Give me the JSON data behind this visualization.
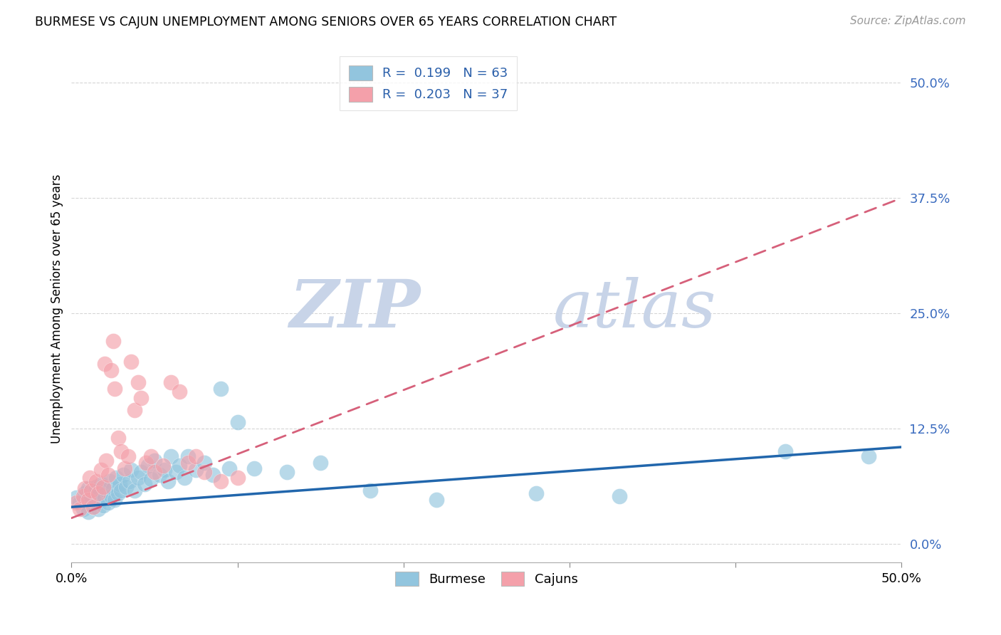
{
  "title": "BURMESE VS CAJUN UNEMPLOYMENT AMONG SENIORS OVER 65 YEARS CORRELATION CHART",
  "source": "Source: ZipAtlas.com",
  "ylabel": "Unemployment Among Seniors over 65 years",
  "ytick_labels": [
    "0.0%",
    "12.5%",
    "25.0%",
    "37.5%",
    "50.0%"
  ],
  "ytick_values": [
    0.0,
    0.125,
    0.25,
    0.375,
    0.5
  ],
  "xlim": [
    0.0,
    0.5
  ],
  "ylim": [
    -0.02,
    0.53
  ],
  "burmese_R": 0.199,
  "burmese_N": 63,
  "cajun_R": 0.203,
  "cajun_N": 37,
  "burmese_color": "#92c5de",
  "cajun_color": "#f4a0aa",
  "burmese_line_color": "#2166ac",
  "cajun_line_color": "#d6607a",
  "grid_color": "#cccccc",
  "watermark_zip": "ZIP",
  "watermark_atlas": "atlas",
  "watermark_color": "#c8d4e8",
  "legend_label_1": "Burmese",
  "legend_label_2": "Cajuns",
  "burmese_line_x": [
    0.0,
    0.5
  ],
  "burmese_line_y": [
    0.04,
    0.105
  ],
  "cajun_line_x": [
    0.0,
    0.5
  ],
  "cajun_line_y": [
    0.028,
    0.375
  ],
  "burmese_x": [
    0.003,
    0.005,
    0.007,
    0.008,
    0.009,
    0.01,
    0.01,
    0.011,
    0.012,
    0.013,
    0.014,
    0.015,
    0.015,
    0.016,
    0.017,
    0.018,
    0.018,
    0.019,
    0.02,
    0.021,
    0.022,
    0.023,
    0.024,
    0.025,
    0.026,
    0.027,
    0.028,
    0.029,
    0.03,
    0.031,
    0.033,
    0.035,
    0.036,
    0.038,
    0.04,
    0.042,
    0.044,
    0.046,
    0.048,
    0.05,
    0.053,
    0.056,
    0.058,
    0.06,
    0.063,
    0.065,
    0.068,
    0.07,
    0.075,
    0.08,
    0.085,
    0.09,
    0.095,
    0.1,
    0.11,
    0.13,
    0.15,
    0.18,
    0.22,
    0.28,
    0.33,
    0.43,
    0.48
  ],
  "burmese_y": [
    0.05,
    0.045,
    0.038,
    0.055,
    0.042,
    0.06,
    0.035,
    0.048,
    0.052,
    0.04,
    0.058,
    0.044,
    0.062,
    0.038,
    0.055,
    0.048,
    0.065,
    0.042,
    0.05,
    0.058,
    0.045,
    0.068,
    0.052,
    0.06,
    0.048,
    0.072,
    0.055,
    0.065,
    0.058,
    0.075,
    0.062,
    0.068,
    0.08,
    0.058,
    0.072,
    0.078,
    0.065,
    0.085,
    0.07,
    0.09,
    0.075,
    0.08,
    0.068,
    0.095,
    0.078,
    0.085,
    0.072,
    0.095,
    0.08,
    0.088,
    0.075,
    0.168,
    0.082,
    0.132,
    0.082,
    0.078,
    0.088,
    0.058,
    0.048,
    0.055,
    0.052,
    0.1,
    0.095
  ],
  "cajun_x": [
    0.003,
    0.005,
    0.007,
    0.008,
    0.01,
    0.011,
    0.012,
    0.013,
    0.015,
    0.016,
    0.018,
    0.019,
    0.02,
    0.021,
    0.022,
    0.024,
    0.025,
    0.026,
    0.028,
    0.03,
    0.032,
    0.034,
    0.036,
    0.038,
    0.04,
    0.042,
    0.045,
    0.048,
    0.05,
    0.055,
    0.06,
    0.065,
    0.07,
    0.075,
    0.08,
    0.09,
    0.1
  ],
  "cajun_y": [
    0.045,
    0.038,
    0.052,
    0.06,
    0.048,
    0.072,
    0.058,
    0.04,
    0.068,
    0.055,
    0.08,
    0.062,
    0.195,
    0.09,
    0.075,
    0.188,
    0.22,
    0.168,
    0.115,
    0.1,
    0.082,
    0.095,
    0.198,
    0.145,
    0.175,
    0.158,
    0.088,
    0.095,
    0.078,
    0.085,
    0.175,
    0.165,
    0.088,
    0.095,
    0.078,
    0.068,
    0.072
  ]
}
